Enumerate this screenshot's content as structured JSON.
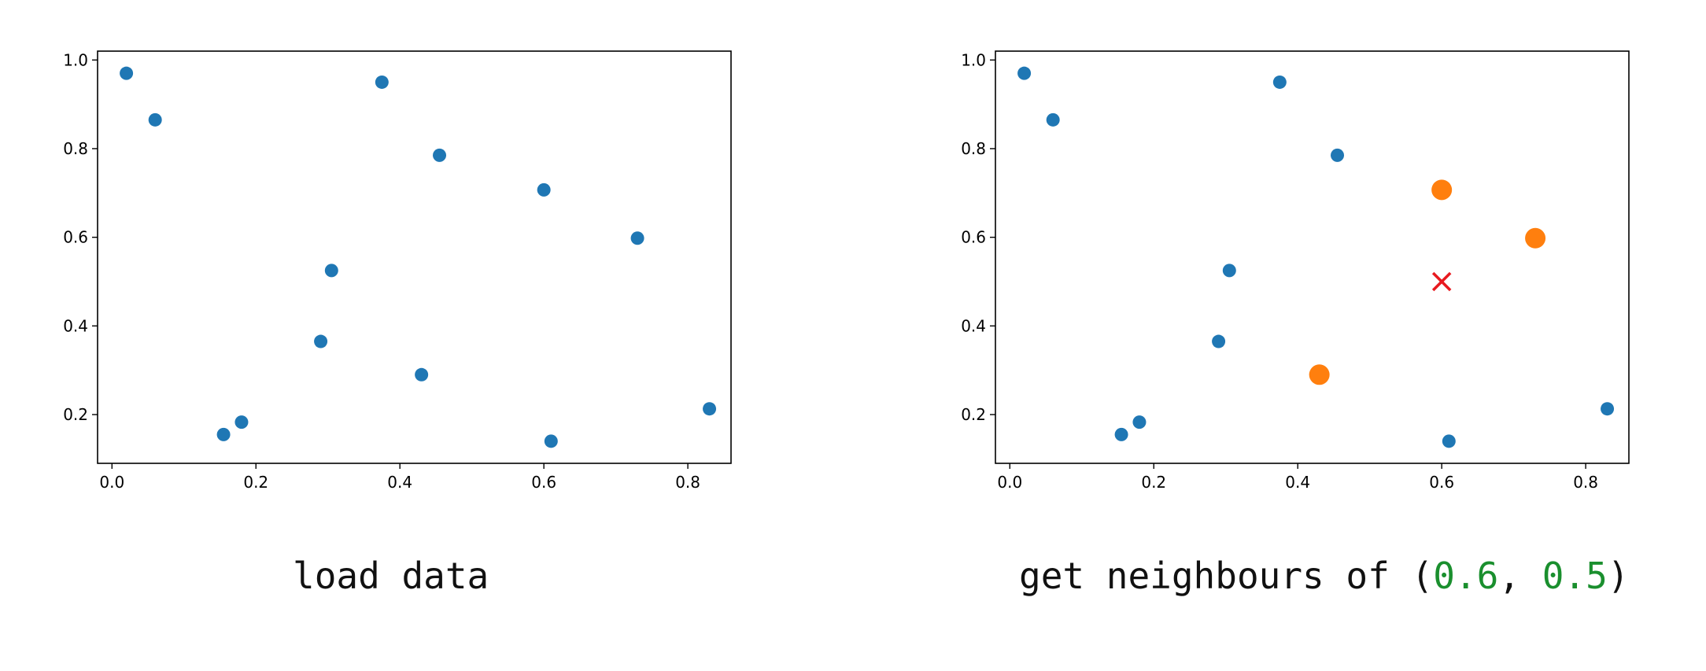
{
  "colors": {
    "points": "#1f77b4",
    "neighbours": "#ff7f0e",
    "query": "#e8191f",
    "number_literal": "#1a8f2e",
    "axes": "#000000"
  },
  "chart_data": [
    {
      "type": "scatter",
      "caption": "load data",
      "xlim": [
        -0.02,
        0.86
      ],
      "ylim": [
        0.09,
        1.02
      ],
      "xticks": [
        0.0,
        0.2,
        0.4,
        0.6,
        0.8
      ],
      "xtick_labels": [
        "0.0",
        "0.2",
        "0.4",
        "0.6",
        "0.8"
      ],
      "yticks": [
        0.2,
        0.4,
        0.6,
        0.8,
        1.0
      ],
      "ytick_labels": [
        "0.2",
        "0.4",
        "0.6",
        "0.8",
        "1.0"
      ],
      "grid": false,
      "points": [
        [
          0.02,
          0.97
        ],
        [
          0.06,
          0.865
        ],
        [
          0.375,
          0.95
        ],
        [
          0.455,
          0.785
        ],
        [
          0.6,
          0.707
        ],
        [
          0.73,
          0.598
        ],
        [
          0.305,
          0.525
        ],
        [
          0.29,
          0.365
        ],
        [
          0.43,
          0.29
        ],
        [
          0.155,
          0.155
        ],
        [
          0.18,
          0.183
        ],
        [
          0.61,
          0.14
        ],
        [
          0.83,
          0.213
        ]
      ]
    },
    {
      "type": "scatter",
      "caption_prefix": "get neighbours of (",
      "caption_x": "0.6",
      "caption_sep": ", ",
      "caption_y": "0.5",
      "caption_suffix": ")",
      "xlim": [
        -0.02,
        0.86
      ],
      "ylim": [
        0.09,
        1.02
      ],
      "xticks": [
        0.0,
        0.2,
        0.4,
        0.6,
        0.8
      ],
      "xtick_labels": [
        "0.0",
        "0.2",
        "0.4",
        "0.6",
        "0.8"
      ],
      "yticks": [
        0.2,
        0.4,
        0.6,
        0.8,
        1.0
      ],
      "ytick_labels": [
        "0.2",
        "0.4",
        "0.6",
        "0.8",
        "1.0"
      ],
      "grid": false,
      "points": [
        [
          0.02,
          0.97
        ],
        [
          0.06,
          0.865
        ],
        [
          0.375,
          0.95
        ],
        [
          0.455,
          0.785
        ],
        [
          0.305,
          0.525
        ],
        [
          0.29,
          0.365
        ],
        [
          0.155,
          0.155
        ],
        [
          0.18,
          0.183
        ],
        [
          0.61,
          0.14
        ],
        [
          0.83,
          0.213
        ]
      ],
      "neighbours": [
        [
          0.6,
          0.707
        ],
        [
          0.73,
          0.598
        ],
        [
          0.43,
          0.29
        ]
      ],
      "query": [
        0.6,
        0.5
      ]
    }
  ]
}
